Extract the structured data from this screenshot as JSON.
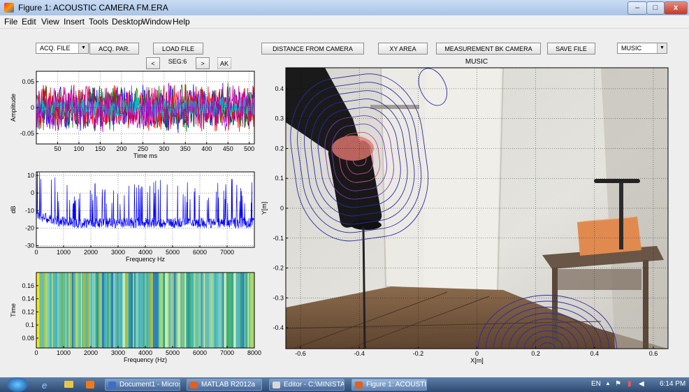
{
  "window": {
    "title": "Figure 1: ACOUSTIC CAMERA FM.ERA",
    "minimize": "–",
    "maximize": "□",
    "close": "x"
  },
  "menu": [
    "File",
    "Edit",
    "View",
    "Insert",
    "Tools",
    "Desktop",
    "Window",
    "Help"
  ],
  "controls": {
    "acq_file": "ACQ. FILE",
    "acq_par": "ACQ. PAR.",
    "load_file": "LOAD FILE",
    "prev": "<",
    "seg": "SEG:6",
    "next": ">",
    "ak": "AK",
    "distance": "DISTANCE FROM CAMERA",
    "xy_area": "XY AREA",
    "measurement": "MEASUREMENT BK CAMERA",
    "save_file": "SAVE FILE",
    "music_select": "MUSIC"
  },
  "chart_data": [
    {
      "type": "line",
      "title": "",
      "xlabel": "Time ms",
      "ylabel": "Amplitude",
      "xticks": [
        "50",
        "100",
        "150",
        "200",
        "250",
        "300",
        "350",
        "400",
        "450",
        "500"
      ],
      "yticks": [
        "0.05",
        "0",
        "-0.05"
      ],
      "xlim": [
        0,
        512
      ],
      "ylim": [
        -0.07,
        0.07
      ],
      "series_colors": [
        "#0000ff",
        "#008000",
        "#ff0000",
        "#00bfbf",
        "#bf00bf"
      ]
    },
    {
      "type": "line",
      "title": "",
      "xlabel": "Frequency Hz",
      "ylabel": "dB",
      "xticks": [
        "0",
        "1000",
        "2000",
        "3000",
        "4000",
        "5000",
        "6000",
        "7000"
      ],
      "yticks": [
        "10",
        "0",
        "-10",
        "-20",
        "-30"
      ],
      "xlim": [
        0,
        8000
      ],
      "ylim": [
        -31,
        12
      ],
      "series_colors": [
        "#0000ff"
      ]
    },
    {
      "type": "heatmap",
      "title": "",
      "xlabel": "Frequency (Hz)",
      "ylabel": "Time",
      "xticks": [
        "0",
        "1000",
        "2000",
        "3000",
        "4000",
        "5000",
        "6000",
        "7000",
        "8000"
      ],
      "yticks": [
        "0.16",
        "0.14",
        "0.12",
        "0.1",
        "0.08"
      ],
      "xlim": [
        0,
        8000
      ],
      "ylim": [
        0.065,
        0.18
      ]
    },
    {
      "type": "contour",
      "title": "MUSIC",
      "xlabel": "X[m]",
      "ylabel": "Y[m]",
      "xticks": [
        "-0.6",
        "-0.4",
        "-0.2",
        "0",
        "0.2",
        "0.4",
        "0.6"
      ],
      "yticks": [
        "0.4",
        "0.3",
        "0.2",
        "0.1",
        "0",
        "-0.1",
        "-0.2",
        "-0.3",
        "-0.4"
      ],
      "xlim": [
        -0.65,
        0.65
      ],
      "ylim": [
        -0.47,
        0.47
      ],
      "sources": [
        {
          "x": -0.4,
          "y": 0.17
        },
        {
          "x": 0.24,
          "y": -0.47
        },
        {
          "x": -0.15,
          "y": 0.42
        }
      ]
    }
  ],
  "taskbar": {
    "items": [
      "Document1 - Micros...",
      "MATLAB R2012a",
      "Editor - C:\\MINISTA...",
      "Figure 1: ACOUSTIC ..."
    ],
    "lang": "EN",
    "clock": "6:14 PM"
  }
}
